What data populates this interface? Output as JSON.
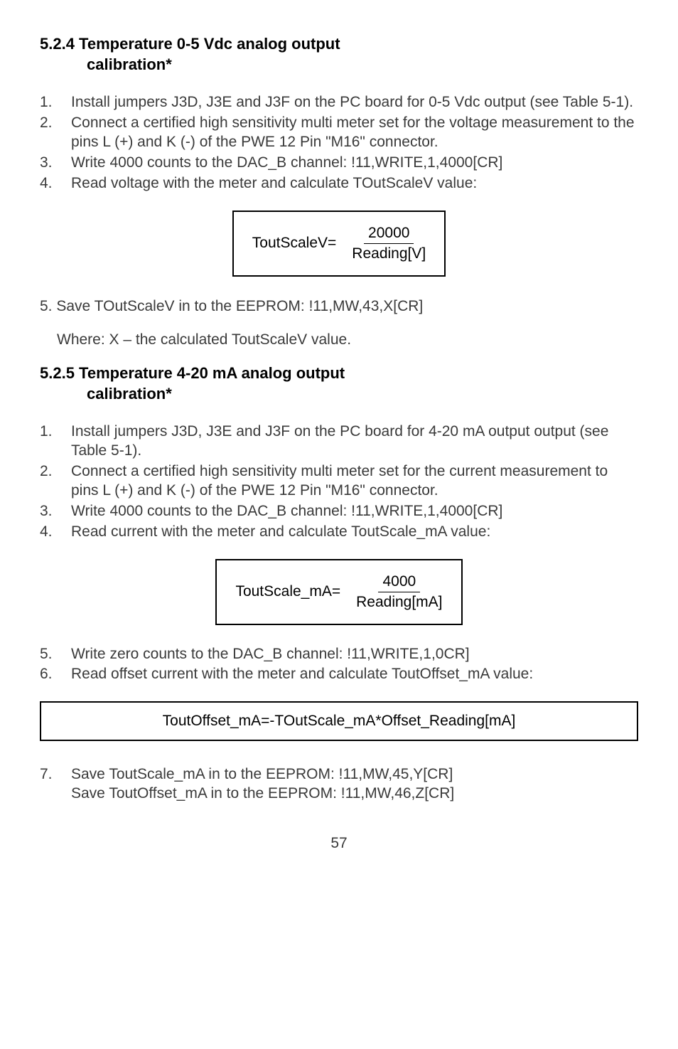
{
  "section524": {
    "heading_line1": "5.2.4 Temperature 0-5 Vdc analog output",
    "heading_line2": "calibration*",
    "steps": [
      {
        "n": "1.",
        "t": "Install jumpers J3D, J3E and J3F on the PC board for 0-5 Vdc output (see Table 5-1)."
      },
      {
        "n": "2.",
        "t": "Connect a certified high sensitivity multi meter set for the voltage measurement to the pins L (+) and K (-) of the PWE 12 Pin \"M16\" connector."
      },
      {
        "n": "3.",
        "t": "Write 4000 counts to the DAC_B channel: !11,WRITE,1,4000[CR]"
      },
      {
        "n": "4.",
        "t": "Read voltage with the meter and calculate TOutScaleV value:"
      }
    ],
    "formula": {
      "lhs": "ToutScaleV=",
      "num": "20000",
      "den": "Reading[V]"
    },
    "step5": "5. Save TOutScaleV in to the EEPROM: !11,MW,43,X[CR]",
    "where": "Where: X – the calculated ToutScaleV value."
  },
  "section525": {
    "heading_line1": "5.2.5 Temperature 4-20 mA analog output",
    "heading_line2": "calibration*",
    "steps": [
      {
        "n": "1.",
        "t": "Install jumpers J3D, J3E and J3F on the PC board for 4-20 mA output output (see Table 5-1)."
      },
      {
        "n": "2.",
        "t": "Connect a certified high sensitivity multi meter set for the current measurement to pins L (+) and K (-) of the PWE 12 Pin \"M16\" connector."
      },
      {
        "n": "3.",
        "t": "Write 4000 counts to the DAC_B channel: !11,WRITE,1,4000[CR]"
      },
      {
        "n": "4.",
        "t": "Read current with the meter and calculate ToutScale_mA value:"
      }
    ],
    "formula": {
      "lhs": "ToutScale_mA=",
      "num": "4000",
      "den": "Reading[mA]"
    },
    "steps2": [
      {
        "n": "5.",
        "t": "Write zero counts to the DAC_B channel: !11,WRITE,1,0CR]"
      },
      {
        "n": "6.",
        "t": "Read offset current with the meter and calculate ToutOffset_mA value:"
      }
    ],
    "wide_formula": "ToutOffset_mA=-TOutScale_mA*Offset_Reading[mA]",
    "step7_num": "7.",
    "step7_line1": "Save ToutScale_mA in to the EEPROM: !11,MW,45,Y[CR]",
    "step7_line2": "Save ToutOffset_mA in to the EEPROM: !11,MW,46,Z[CR]"
  },
  "page_number": "57"
}
